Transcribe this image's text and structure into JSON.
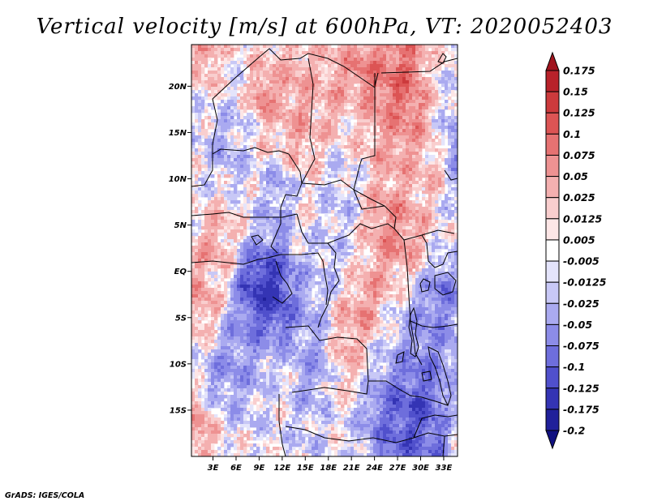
{
  "chart_data": {
    "type": "heatmap",
    "title": "Vertical velocity [m/s] at 600hPa, VT: 2020052403",
    "variable": "Vertical velocity",
    "units": "m/s",
    "level": "600hPa",
    "valid_time": "2020052403",
    "x_ticks": [
      "3E",
      "6E",
      "9E",
      "12E",
      "15E",
      "18E",
      "21E",
      "24E",
      "27E",
      "30E",
      "33E"
    ],
    "x_tick_values": [
      3,
      6,
      9,
      12,
      15,
      18,
      21,
      24,
      27,
      30,
      33
    ],
    "y_ticks": [
      "20N",
      "15N",
      "10N",
      "5N",
      "EQ",
      "5S",
      "10S",
      "15S"
    ],
    "y_tick_values": [
      20,
      15,
      10,
      5,
      0,
      -5,
      -10,
      -15
    ],
    "xlim": [
      0.2,
      34.8
    ],
    "ylim": [
      -20,
      24.5
    ],
    "colorbar": {
      "levels": [
        "0.175",
        "0.15",
        "0.125",
        "0.1",
        "0.075",
        "0.05",
        "0.025",
        "0.0125",
        "0.005",
        "-0.005",
        "-0.0125",
        "-0.025",
        "-0.05",
        "-0.075",
        "-0.1",
        "-0.125",
        "-0.175",
        "-0.2"
      ],
      "colors": [
        "#a0141e",
        "#b8222a",
        "#cc3a3c",
        "#dc5454",
        "#e67272",
        "#ee9292",
        "#f4b0b0",
        "#f9cece",
        "#fde6e6",
        "#ffffff",
        "#e4e4fb",
        "#c8c8f6",
        "#aaaaf0",
        "#8c8ce8",
        "#6e6edc",
        "#5050cc",
        "#3434b4",
        "#20209a",
        "#101080"
      ]
    },
    "field_range": [
      -0.2,
      0.175
    ]
  },
  "credit": "GrADS: IGES/COLA"
}
